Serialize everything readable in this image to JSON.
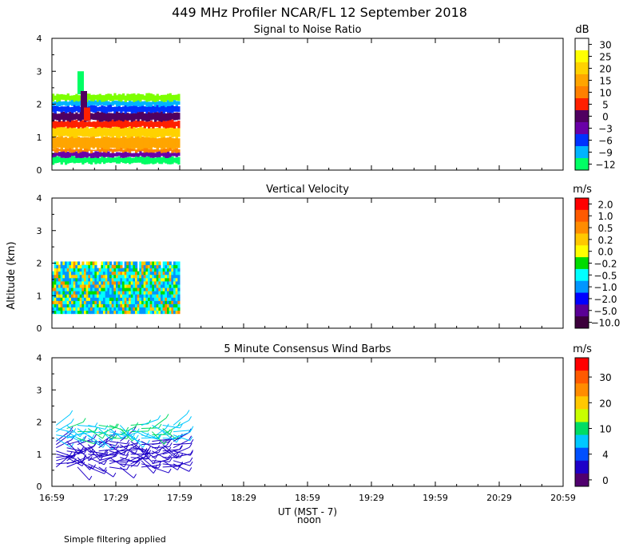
{
  "figure": {
    "title": "449 MHz Profiler NCAR/FL 12 September 2018",
    "ylabel": "Altitude (km)",
    "xlabel": "UT  (MST - 7)",
    "noon_label": "noon",
    "footer": "Simple filtering applied"
  },
  "x_ticks": [
    "16:59",
    "17:29",
    "17:59",
    "18:29",
    "18:59",
    "19:29",
    "19:59",
    "20:29",
    "20:59"
  ],
  "y_ticks": [
    "0",
    "1",
    "2",
    "3",
    "4"
  ],
  "panels": [
    {
      "title": "Signal to Noise Ratio",
      "unit": "dB",
      "colorbar_labels": [
        "30",
        "25",
        "20",
        "15",
        "10",
        "5",
        "0",
        "−3",
        "−6",
        "−9",
        "−12"
      ]
    },
    {
      "title": "Vertical Velocity",
      "unit": "m/s",
      "colorbar_labels": [
        "2.0",
        "1.0",
        "0.5",
        "0.2",
        "0.0",
        "−0.2",
        "−0.5",
        "−1.0",
        "−2.0",
        "−5.0",
        "−10.0"
      ]
    },
    {
      "title": "5 Minute Consensus Wind Barbs",
      "unit": "m/s",
      "colorbar_labels": [
        "30",
        "20",
        "10",
        "4",
        "0"
      ]
    }
  ],
  "colors": {
    "snr_scale": [
      "#ffffff",
      "#ffff00",
      "#ffd200",
      "#ffa500",
      "#ff8000",
      "#ff2000",
      "#500060",
      "#6a00a8",
      "#0032ff",
      "#00b4ff",
      "#00ff64",
      "#7cff00"
    ],
    "vv_scale": [
      "#ff0000",
      "#ff5a00",
      "#ff8c00",
      "#ffc800",
      "#ffff00",
      "#00dc00",
      "#00ffff",
      "#0096ff",
      "#0000ff",
      "#5a0096",
      "#3c003c"
    ],
    "wind_scale": [
      "#ff0000",
      "#ff5a00",
      "#ff8c00",
      "#ffc800",
      "#c8ff00",
      "#00dc64",
      "#00c8ff",
      "#0050ff",
      "#1e00c8",
      "#50006e"
    ]
  },
  "chart_data": [
    {
      "type": "heatmap",
      "title": "Signal to Noise Ratio",
      "unit": "dB",
      "x_range": [
        "16:59",
        "20:59"
      ],
      "data_time_range": [
        "16:59",
        "17:59"
      ],
      "ylim": [
        0,
        4
      ],
      "ylabel": "Altitude (km)",
      "color_levels": [
        -12,
        -9,
        -6,
        -3,
        0,
        5,
        10,
        15,
        20,
        25,
        30
      ],
      "height_bands": [
        {
          "bottom_km": 0.2,
          "top_km": 0.4,
          "snr_db": -9
        },
        {
          "bottom_km": 0.4,
          "top_km": 0.55,
          "snr_db": 0
        },
        {
          "bottom_km": 0.55,
          "top_km": 0.65,
          "snr_db": 15
        },
        {
          "bottom_km": 0.65,
          "top_km": 1.0,
          "snr_db": 20
        },
        {
          "bottom_km": 1.0,
          "top_km": 1.3,
          "snr_db": 25
        },
        {
          "bottom_km": 1.3,
          "top_km": 1.5,
          "snr_db": 10
        },
        {
          "bottom_km": 1.5,
          "top_km": 1.75,
          "snr_db": 5
        },
        {
          "bottom_km": 1.75,
          "top_km": 1.95,
          "snr_db": -3
        },
        {
          "bottom_km": 1.95,
          "top_km": 2.1,
          "snr_db": -6
        },
        {
          "bottom_km": 2.1,
          "top_km": 2.3,
          "snr_db": -12
        }
      ],
      "features": [
        {
          "time": "17:13",
          "top_km": 3.0,
          "description_color": "magenta plume"
        }
      ]
    },
    {
      "type": "heatmap",
      "title": "Vertical Velocity",
      "unit": "m/s",
      "x_range": [
        "16:59",
        "20:59"
      ],
      "data_time_range": [
        "16:59",
        "17:59"
      ],
      "ylim": [
        0,
        4
      ],
      "color_levels": [
        -10.0,
        -5.0,
        -2.0,
        -1.0,
        -0.5,
        -0.2,
        0.0,
        0.2,
        0.5,
        1.0,
        2.0
      ],
      "height_range_km": [
        0.45,
        2.0
      ],
      "dominant_values": [
        -0.5,
        -1.0,
        0.2,
        0.5
      ]
    },
    {
      "type": "scatter",
      "title": "5 Minute Consensus Wind Barbs",
      "unit": "m/s",
      "x_range": [
        "16:59",
        "20:59"
      ],
      "data_time_range": [
        "16:59",
        "17:59"
      ],
      "ylim": [
        0,
        4
      ],
      "speed_levels": [
        0,
        4,
        10,
        20,
        30
      ],
      "height_range_km": [
        0.6,
        2.0
      ]
    }
  ]
}
